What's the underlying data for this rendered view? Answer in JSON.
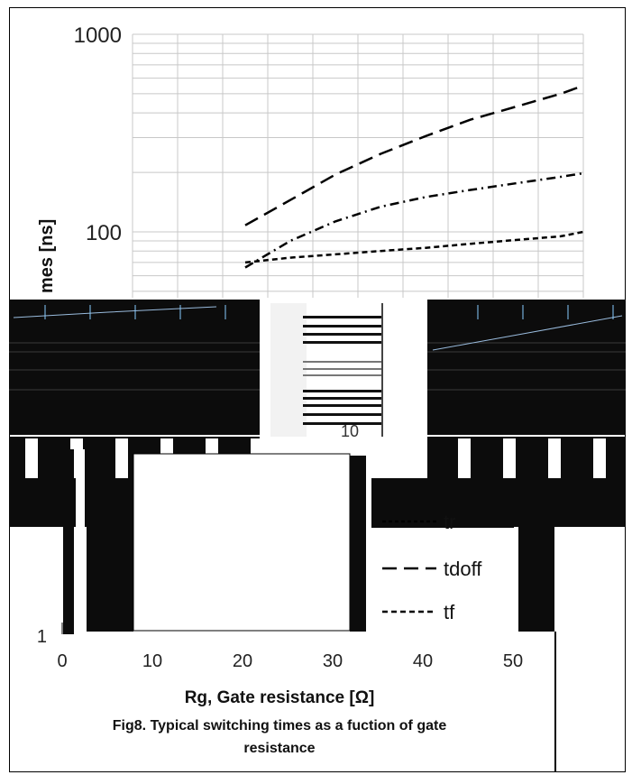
{
  "chart_data": {
    "type": "line",
    "title": "",
    "xlabel": "Rg, Gate resistance [Ω]",
    "ylabel": "times [ns]",
    "ylabel_visible_fragment": "mes [ns]",
    "y_scale": "log",
    "ylim": [
      1,
      1000
    ],
    "xlim": [
      0,
      50
    ],
    "x_ticks": [
      "0",
      "10",
      "20",
      "30",
      "40",
      "50"
    ],
    "y_ticks": [
      "1",
      "100",
      "1000"
    ],
    "inset_tick_label": "10",
    "grid": true,
    "legend": {
      "placement": "bottom-right",
      "visible_entries": [
        "tr",
        "tdoff",
        "tf"
      ]
    },
    "series": [
      {
        "name": "tdoff",
        "dash": "long-dash",
        "x": [
          12.5,
          17.5,
          22.5,
          27.5,
          32.5,
          37.5,
          42.5,
          47.5,
          50
        ],
        "y": [
          108,
          145,
          195,
          248,
          305,
          370,
          430,
          500,
          550
        ]
      },
      {
        "name": "unlabeled-dashdot",
        "dash": "dash-dot",
        "x": [
          12.5,
          17.5,
          22.5,
          27.5,
          32.5,
          37.5,
          42.5,
          47.5,
          50
        ],
        "y": [
          66,
          90,
          113,
          134,
          150,
          163,
          176,
          190,
          198
        ]
      },
      {
        "name": "tf",
        "dash": "short-dash",
        "x": [
          12.5,
          17.5,
          22.5,
          27.5,
          32.5,
          37.5,
          42.5,
          47.5,
          50
        ],
        "y": [
          70,
          74,
          77,
          80,
          83,
          87,
          91,
          95,
          100
        ]
      }
    ]
  },
  "caption": {
    "xlabel": "Rg, Gate resistance [Ω]",
    "line1": "Fig8. Typical switching times as a fuction of gate",
    "line2": "resistance"
  }
}
